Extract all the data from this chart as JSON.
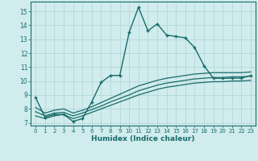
{
  "xlabel": "Humidex (Indice chaleur)",
  "background_color": "#d0ecec",
  "line_color": "#1a6b6b",
  "grid_color": "#b0d4d4",
  "xlim": [
    -0.5,
    23.5
  ],
  "ylim": [
    6.8,
    15.7
  ],
  "xticks": [
    0,
    1,
    2,
    3,
    4,
    5,
    6,
    7,
    8,
    9,
    10,
    11,
    12,
    13,
    14,
    15,
    16,
    17,
    18,
    19,
    20,
    21,
    22,
    23
  ],
  "yticks": [
    7,
    8,
    9,
    10,
    11,
    12,
    13,
    14,
    15
  ],
  "main_x": [
    0,
    1,
    2,
    3,
    4,
    5,
    6,
    7,
    8,
    9,
    10,
    11,
    12,
    13,
    14,
    15,
    16,
    17,
    18,
    19,
    20,
    21,
    22,
    23
  ],
  "main_y": [
    8.8,
    7.4,
    7.6,
    7.6,
    7.1,
    7.3,
    8.5,
    9.9,
    10.4,
    10.4,
    13.5,
    15.3,
    13.6,
    14.1,
    13.3,
    13.2,
    13.1,
    12.4,
    11.1,
    10.2,
    10.2,
    10.2,
    10.2,
    10.4
  ],
  "line2_x": [
    0,
    1,
    2,
    3,
    4,
    5,
    6,
    7,
    8,
    9,
    10,
    11,
    12,
    13,
    14,
    15,
    16,
    17,
    18,
    19,
    20,
    21,
    22,
    23
  ],
  "line2_y": [
    7.5,
    7.3,
    7.5,
    7.6,
    7.3,
    7.5,
    7.75,
    8.0,
    8.25,
    8.5,
    8.75,
    9.0,
    9.2,
    9.4,
    9.55,
    9.65,
    9.75,
    9.85,
    9.9,
    9.95,
    9.95,
    10.0,
    10.0,
    10.05
  ],
  "line3_x": [
    0,
    1,
    2,
    3,
    4,
    5,
    6,
    7,
    8,
    9,
    10,
    11,
    12,
    13,
    14,
    15,
    16,
    17,
    18,
    19,
    20,
    21,
    22,
    23
  ],
  "line3_y": [
    7.8,
    7.5,
    7.7,
    7.75,
    7.5,
    7.7,
    7.95,
    8.2,
    8.5,
    8.75,
    9.0,
    9.3,
    9.5,
    9.7,
    9.85,
    9.95,
    10.05,
    10.15,
    10.2,
    10.25,
    10.25,
    10.3,
    10.3,
    10.35
  ],
  "line4_x": [
    0,
    1,
    2,
    3,
    4,
    5,
    6,
    7,
    8,
    9,
    10,
    11,
    12,
    13,
    14,
    15,
    16,
    17,
    18,
    19,
    20,
    21,
    22,
    23
  ],
  "line4_y": [
    8.1,
    7.7,
    7.9,
    8.0,
    7.7,
    7.9,
    8.15,
    8.45,
    8.75,
    9.05,
    9.35,
    9.65,
    9.85,
    10.05,
    10.2,
    10.3,
    10.4,
    10.5,
    10.55,
    10.6,
    10.6,
    10.6,
    10.6,
    10.65
  ]
}
